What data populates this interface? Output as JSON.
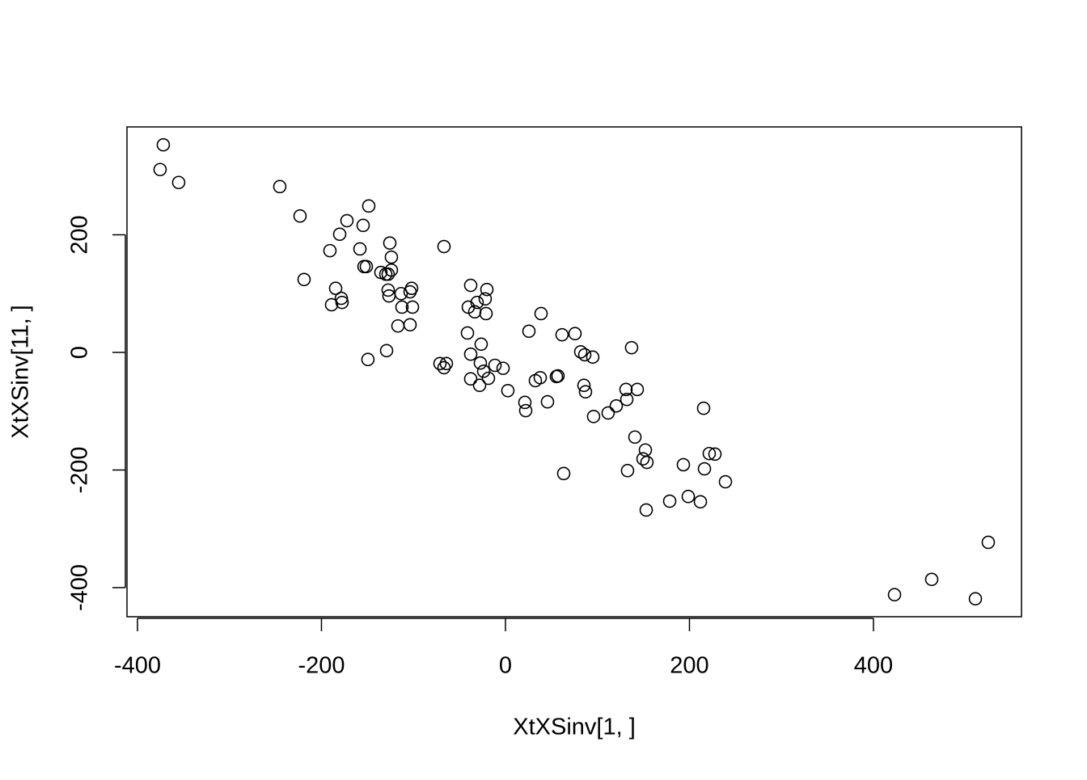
{
  "chart_data": {
    "type": "scatter",
    "xlabel": "XtXSinv[1, ]",
    "ylabel": "XtXSinv[11, ]",
    "x": [
      -371.9,
      -375.4,
      -355.2,
      -245.3,
      -223.3,
      -218.9,
      -172.3,
      -148.6,
      -154.7,
      -180.2,
      -190.8,
      -158.2,
      -125.7,
      -124,
      -153.8,
      -151.2,
      -124,
      -135.4,
      -130.1,
      -127.5,
      -184.6,
      -178.4,
      -177.6,
      -189,
      -127.5,
      -126.6,
      -113.4,
      -102,
      -103.7,
      -101.1,
      -112.5,
      -116.9,
      -103.7,
      -129.2,
      -149.5,
      -66.8,
      -37.8,
      -20.2,
      -22,
      -30.8,
      -40.4,
      -33.4,
      -21.1,
      -41.3,
      38.7,
      25.5,
      61.5,
      75.6,
      137.1,
      -26.4,
      -37.8,
      -71.2,
      -64.2,
      -66.8,
      -27.3,
      -11.4,
      -2.6,
      -23.7,
      -37.8,
      -18.5,
      -28.1,
      2.6,
      32.5,
      37.8,
      55.4,
      57.1,
      81.8,
      86.2,
      94.9,
      85.3,
      87,
      21.1,
      22,
      45.7,
      95.8,
      111.6,
      120.4,
      131,
      131.9,
      143.3,
      215.4,
      140.7,
      152.1,
      149.5,
      153.8,
      132.7,
      63.3,
      193.4,
      216.3,
      221.5,
      227.7,
      239.1,
      198.7,
      178.5,
      211.9,
      153,
      422.9,
      463.3,
      510.8,
      524.8
    ],
    "values": [
      353,
      311,
      289,
      282,
      232,
      124,
      224,
      249,
      216,
      201,
      173,
      176,
      186,
      162,
      146,
      146,
      140,
      136,
      133,
      133,
      109,
      92,
      85,
      81,
      106,
      96,
      100,
      109,
      103,
      77,
      77,
      45,
      47,
      3,
      -12,
      180,
      114,
      107,
      91,
      85,
      77,
      69,
      66,
      33,
      66,
      36,
      30,
      32,
      8,
      14,
      -3,
      -19,
      -19,
      -26,
      -18,
      -22,
      -27,
      -32,
      -45,
      -44,
      -56,
      -65,
      -48,
      -43,
      -41,
      -40,
      1,
      -4,
      -8,
      -56,
      -67,
      -85,
      -99,
      -84,
      -109,
      -103,
      -91,
      -63,
      -80,
      -63,
      -95,
      -144,
      -166,
      -181,
      -187,
      -201,
      -206,
      -191,
      -198,
      -172,
      -173,
      -220,
      -245,
      -253,
      -254,
      -268,
      -412,
      -386,
      -419,
      -323
    ],
    "xlim": [
      -411.4,
      560.9
    ],
    "ylim": [
      -449.5,
      383.5
    ],
    "xticks": [
      -400,
      -200,
      0,
      200,
      400
    ],
    "yticks": [
      -400,
      -200,
      0,
      200
    ],
    "color": "#000000"
  }
}
